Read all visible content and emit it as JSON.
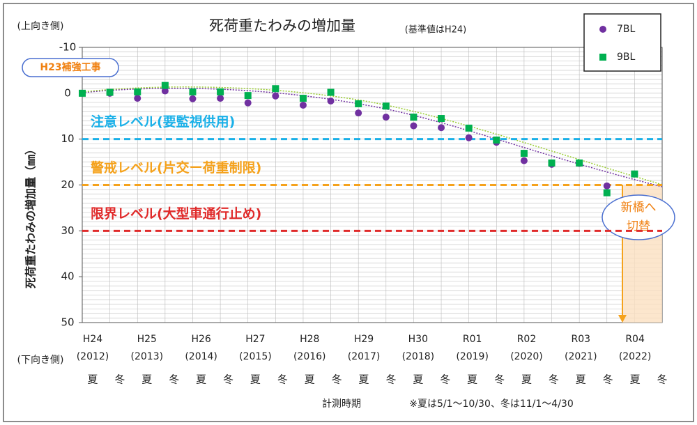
{
  "chart_data": {
    "type": "scatter",
    "title": "死荷重たわみの増加量",
    "subtitle": "(基準値はH24)",
    "top_side_label": "(上向き側)",
    "bottom_side_label": "(下向き側)",
    "y_axis_label": "死荷重たわみの増加量（㎜）",
    "x_axis_label": "計測時期",
    "note": "※夏は5/1～10/30、冬は11/1～4/30",
    "annotations": [
      "H23補強工事",
      "新橋へ",
      "切替"
    ],
    "categories": [
      "夏",
      "冬",
      "夏",
      "冬",
      "夏",
      "冬",
      "夏",
      "冬",
      "夏",
      "冬",
      "夏",
      "冬",
      "夏",
      "冬",
      "夏",
      "冬",
      "夏",
      "冬",
      "夏",
      "冬",
      "夏",
      "冬"
    ],
    "years": [
      {
        "label": "H24",
        "sub": "(2012)"
      },
      {
        "label": "H25",
        "sub": "(2013)"
      },
      {
        "label": "H26",
        "sub": "(2014)"
      },
      {
        "label": "H27",
        "sub": "(2015)"
      },
      {
        "label": "H28",
        "sub": "(2016)"
      },
      {
        "label": "H29",
        "sub": "(2017)"
      },
      {
        "label": "H30",
        "sub": "(2018)"
      },
      {
        "label": "R01",
        "sub": "(2019)"
      },
      {
        "label": "R02",
        "sub": "(2020)"
      },
      {
        "label": "R03",
        "sub": "(2021)"
      },
      {
        "label": "R04",
        "sub": "(2022)"
      }
    ],
    "series": [
      {
        "name": "7BL",
        "color": "#7030a0",
        "marker": "circle",
        "values": [
          0,
          0,
          1.1,
          -0.5,
          1.2,
          1.1,
          2.1,
          0.6,
          2.6,
          1.7,
          4.3,
          5.2,
          7.1,
          7.5,
          9.7,
          10.7,
          14.7,
          15.5,
          15.3,
          20.2,
          17.6,
          null
        ]
      },
      {
        "name": "9BL",
        "color": "#00b050",
        "marker": "square",
        "values": [
          0,
          -0.2,
          -0.3,
          -1.7,
          -0.3,
          -0.3,
          0.5,
          -1,
          1.1,
          -0.2,
          2.3,
          2.8,
          5.2,
          5.5,
          7.6,
          10.2,
          13.1,
          15.2,
          15.2,
          21.7,
          17.6,
          null
        ]
      }
    ],
    "reference_lines": [
      {
        "label": "注意レベル(要監視供用)",
        "value": 10,
        "color": "#1ab0e8"
      },
      {
        "label": "警戒レベル(片交ー荷重制限)",
        "value": 20,
        "color": "#f5a21c"
      },
      {
        "label": "限界レベル(大型車通行止め)",
        "value": 30,
        "color": "#e02a2a"
      }
    ],
    "ylim": [
      -10,
      50
    ],
    "y_inverted": true,
    "yticks": [
      -10,
      0,
      10,
      20,
      30,
      40,
      50
    ],
    "minor_grid_step": 1,
    "grid": true,
    "legend": "top-right"
  }
}
